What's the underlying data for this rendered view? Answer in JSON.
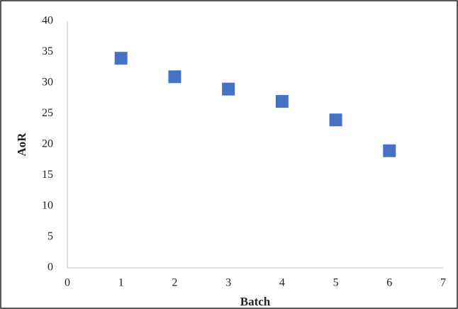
{
  "chart_data": {
    "type": "scatter",
    "xlabel": "Batch",
    "ylabel": "AoR",
    "series": [
      {
        "color": "#4472c4",
        "x": [
          1,
          2,
          3,
          4,
          5,
          6
        ],
        "values": [
          34,
          31,
          29,
          27,
          24,
          19
        ]
      }
    ],
    "xlim": [
      0,
      7
    ],
    "xticks": [
      0,
      1,
      2,
      3,
      4,
      5,
      6,
      7
    ],
    "ylim": [
      0,
      40
    ],
    "yticks": [
      0,
      5,
      10,
      15,
      20,
      25,
      30,
      35,
      40
    ],
    "grid": false
  }
}
